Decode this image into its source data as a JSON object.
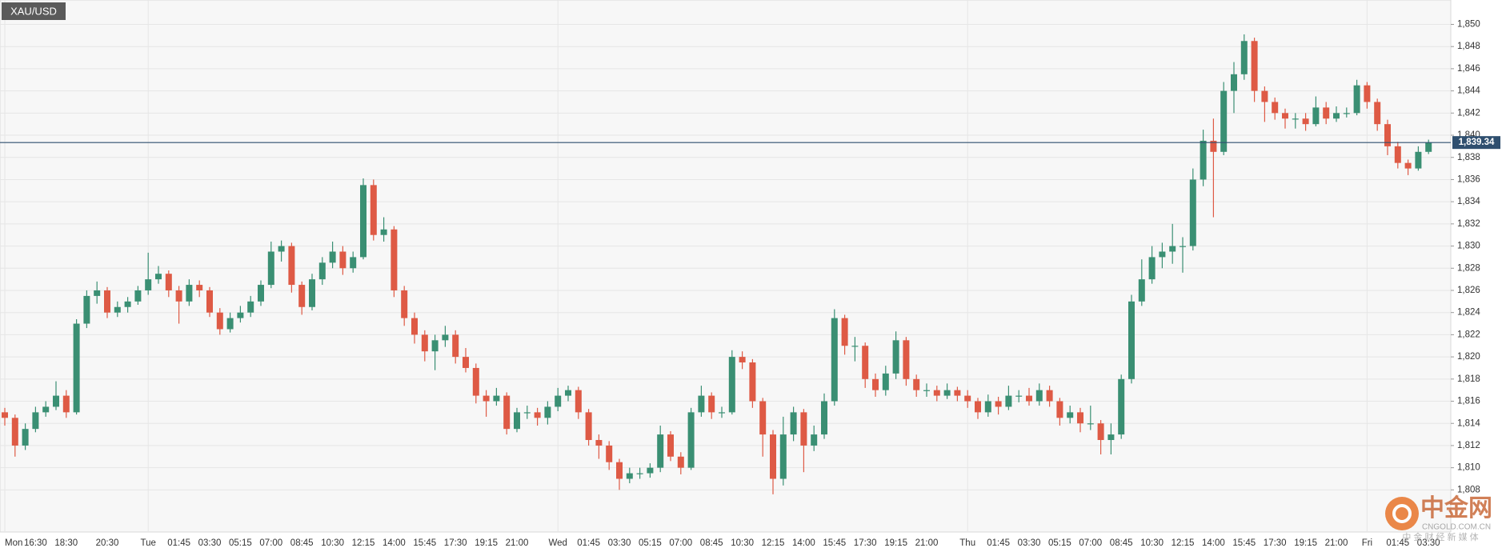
{
  "chart_data": {
    "type": "candlestick",
    "title": "XAU/USD",
    "up_color": "#3a8f73",
    "down_color": "#de5a45",
    "ylim": [
      1804.2,
      1852.2
    ],
    "yticks": [
      {
        "value": 1808,
        "label": "1,808"
      },
      {
        "value": 1810,
        "label": "1,810"
      },
      {
        "value": 1812,
        "label": "1,812"
      },
      {
        "value": 1814,
        "label": "1,814"
      },
      {
        "value": 1816,
        "label": "1,816"
      },
      {
        "value": 1818,
        "label": "1,818"
      },
      {
        "value": 1820,
        "label": "1,820"
      },
      {
        "value": 1822,
        "label": "1,822"
      },
      {
        "value": 1824,
        "label": "1,824"
      },
      {
        "value": 1826,
        "label": "1,826"
      },
      {
        "value": 1828,
        "label": "1,828"
      },
      {
        "value": 1830,
        "label": "1,830"
      },
      {
        "value": 1832,
        "label": "1,832"
      },
      {
        "value": 1834,
        "label": "1,834"
      },
      {
        "value": 1836,
        "label": "1,836"
      },
      {
        "value": 1838,
        "label": "1,838"
      },
      {
        "value": 1840,
        "label": "1,840"
      },
      {
        "value": 1842,
        "label": "1,842"
      },
      {
        "value": 1844,
        "label": "1,844"
      },
      {
        "value": 1846,
        "label": "1,846"
      },
      {
        "value": 1848,
        "label": "1,848"
      },
      {
        "value": 1850,
        "label": "1,850"
      }
    ],
    "grid": true,
    "last_price": {
      "value": 1839.34,
      "label": "1,839.34"
    },
    "watermark": {
      "name": "中金网",
      "domain": "CNGOLD.COM.CN",
      "slogan": "中 金 财 经 新 媒 体"
    },
    "categories": [
      "Mon",
      null,
      null,
      "16:30",
      null,
      null,
      "18:30",
      null,
      null,
      null,
      "20:30",
      null,
      null,
      null,
      "Tue",
      null,
      null,
      "01:45",
      null,
      null,
      "03:30",
      null,
      null,
      "05:15",
      null,
      null,
      "07:00",
      null,
      null,
      "08:45",
      null,
      null,
      "10:30",
      null,
      null,
      "12:15",
      null,
      null,
      "14:00",
      null,
      null,
      "15:45",
      null,
      null,
      "17:30",
      null,
      null,
      "19:15",
      null,
      null,
      "21:00",
      null,
      null,
      null,
      "Wed",
      null,
      null,
      "01:45",
      null,
      null,
      "03:30",
      null,
      null,
      "05:15",
      null,
      null,
      "07:00",
      null,
      null,
      "08:45",
      null,
      null,
      "10:30",
      null,
      null,
      "12:15",
      null,
      null,
      "14:00",
      null,
      null,
      "15:45",
      null,
      null,
      "17:30",
      null,
      null,
      "19:15",
      null,
      null,
      "21:00",
      null,
      null,
      null,
      "Thu",
      null,
      null,
      "01:45",
      null,
      null,
      "03:30",
      null,
      null,
      "05:15",
      null,
      null,
      "07:00",
      null,
      null,
      "08:45",
      null,
      null,
      "10:30",
      null,
      null,
      "12:15",
      null,
      null,
      "14:00",
      null,
      null,
      "15:45",
      null,
      null,
      "17:30",
      null,
      null,
      "19:15",
      null,
      null,
      "21:00",
      null,
      null,
      "Fri",
      null,
      null,
      "01:45",
      null,
      null,
      "03:30"
    ],
    "open": [
      1815,
      1814.5,
      1812,
      1813.5,
      1815,
      1815.5,
      1816.5,
      1815,
      1823,
      1825.5,
      1826,
      1824,
      1824.5,
      1825,
      1826,
      1827,
      1827.5,
      1826,
      1825,
      1826.5,
      1826,
      1824,
      1822.5,
      1823.5,
      1824,
      1825,
      1826.5,
      1829.5,
      1830,
      1826.5,
      1824.5,
      1827,
      1828.5,
      1829.5,
      1828,
      1829,
      1835.5,
      1831,
      1831.5,
      1826,
      1823.5,
      1822,
      1820.5,
      1821.5,
      1822,
      1820,
      1819,
      1816.5,
      1816,
      1816.5,
      1813.5,
      1815,
      1815,
      1814.5,
      1815.5,
      1816.5,
      1817,
      1815,
      1812.5,
      1812,
      1810.5,
      1809,
      1809.5,
      1809.5,
      1810,
      1813,
      1811,
      1810,
      1815,
      1816.5,
      1815,
      1815,
      1820,
      1819.5,
      1816,
      1813,
      1809,
      1813,
      1815,
      1812,
      1813,
      1816,
      1823.5,
      1821,
      1821,
      1818,
      1817,
      1818.5,
      1821.5,
      1818,
      1817,
      1817,
      1816.5,
      1817,
      1816.5,
      1816,
      1815,
      1816,
      1815.5,
      1816.5,
      1816.5,
      1816,
      1817,
      1816,
      1814.5,
      1815,
      1814,
      1814,
      1812.5,
      1813,
      1818,
      1825,
      1827,
      1829,
      1829.5,
      1830,
      1830,
      1836,
      1839.5,
      1838.5,
      1844,
      1845.5,
      1848.5,
      1844,
      1843,
      1842,
      1841.5,
      1841.5,
      1841,
      1842.5,
      1841.5,
      1842,
      1842,
      1844.5,
      1843,
      1841,
      1839,
      1837.5,
      1837,
      1838.5
    ],
    "high": [
      1815.4,
      1814.8,
      1814,
      1815.5,
      1816,
      1817.8,
      1817,
      1823.4,
      1826,
      1826.8,
      1826.3,
      1825,
      1825.4,
      1826.4,
      1829.4,
      1828.2,
      1827.8,
      1826.4,
      1827,
      1826.9,
      1826.3,
      1824.4,
      1824,
      1824.6,
      1825.5,
      1826.9,
      1830.4,
      1830.5,
      1830.3,
      1826.8,
      1827.5,
      1829,
      1830.4,
      1830,
      1829.5,
      1836.1,
      1836,
      1832.6,
      1831.8,
      1826.4,
      1824,
      1822.4,
      1822,
      1822.8,
      1822.4,
      1820.8,
      1819.4,
      1817,
      1817.2,
      1816.8,
      1815.4,
      1815.6,
      1815.4,
      1816,
      1817.2,
      1817.4,
      1817.3,
      1815.3,
      1813,
      1812.4,
      1810.8,
      1810,
      1810,
      1810.4,
      1813.8,
      1813.3,
      1811.4,
      1815.4,
      1817.4,
      1816.8,
      1815.5,
      1820.6,
      1820.5,
      1819.8,
      1816.3,
      1813.4,
      1814.6,
      1815.5,
      1815.3,
      1813.8,
      1816.7,
      1824.3,
      1823.8,
      1821.8,
      1821.3,
      1818.5,
      1819.2,
      1822.3,
      1821.8,
      1818.4,
      1817.6,
      1817.4,
      1817.6,
      1817.3,
      1817,
      1816.3,
      1816.6,
      1816.4,
      1817.4,
      1817,
      1817.2,
      1817.6,
      1817.4,
      1816.3,
      1815.6,
      1815.4,
      1815.6,
      1814.3,
      1814,
      1818.4,
      1825.6,
      1828.8,
      1830,
      1830.3,
      1832,
      1830.8,
      1837,
      1840.5,
      1841.5,
      1844.8,
      1846.6,
      1849.1,
      1848.8,
      1844.4,
      1843.4,
      1842.4,
      1842,
      1842,
      1843.5,
      1843,
      1842.6,
      1842.5,
      1845,
      1844.8,
      1843.3,
      1841.4,
      1839.4,
      1837.8,
      1839,
      1839.6
    ],
    "low": [
      1813.8,
      1811,
      1811.6,
      1813.2,
      1814.6,
      1815.2,
      1814.5,
      1814.8,
      1822.6,
      1824.8,
      1823.5,
      1823.6,
      1824,
      1824.7,
      1825.6,
      1826.6,
      1825.4,
      1823,
      1824.6,
      1825.4,
      1823.6,
      1822,
      1822.2,
      1823.1,
      1823.6,
      1824.6,
      1826.2,
      1828.6,
      1825.8,
      1823.8,
      1824.2,
      1826.5,
      1828,
      1827.4,
      1827.6,
      1828.8,
      1830.5,
      1830.4,
      1825.4,
      1822.8,
      1821.2,
      1819.6,
      1818.8,
      1820.9,
      1819.4,
      1818.6,
      1815.8,
      1814.6,
      1815.6,
      1813,
      1813.2,
      1814.4,
      1813.8,
      1813.9,
      1815.1,
      1816,
      1814.4,
      1812,
      1810.8,
      1809.8,
      1808,
      1808.6,
      1809,
      1809.1,
      1809.6,
      1810.6,
      1809.4,
      1809.8,
      1814.6,
      1814.4,
      1814.5,
      1814.8,
      1818.9,
      1815.4,
      1811,
      1807.6,
      1808.4,
      1812.4,
      1809.6,
      1811.5,
      1812.6,
      1815.6,
      1820.2,
      1819.6,
      1817.2,
      1816.4,
      1816.5,
      1818,
      1817.4,
      1816.4,
      1816.4,
      1816,
      1816.2,
      1816,
      1815.4,
      1814.4,
      1814.6,
      1814.8,
      1815.2,
      1815.9,
      1815.6,
      1815.6,
      1815.5,
      1813.8,
      1814,
      1813.2,
      1813.4,
      1811.2,
      1811.2,
      1812.6,
      1817.6,
      1824.6,
      1826.6,
      1828,
      1828.4,
      1827.6,
      1829.6,
      1835.4,
      1832.6,
      1838.2,
      1842,
      1845,
      1843,
      1841.2,
      1841.4,
      1840.6,
      1840.6,
      1840.4,
      1840.8,
      1841,
      1841.2,
      1841.6,
      1841.8,
      1842.4,
      1840.4,
      1838.2,
      1837,
      1836.4,
      1836.8,
      1838.3
    ],
    "close": [
      1814.5,
      1812,
      1813.5,
      1815,
      1815.5,
      1816.5,
      1815,
      1823,
      1825.5,
      1826,
      1824,
      1824.5,
      1825,
      1826,
      1827,
      1827.5,
      1826,
      1825,
      1826.5,
      1826,
      1824,
      1822.5,
      1823.5,
      1824,
      1825,
      1826.5,
      1829.5,
      1830,
      1826.5,
      1824.5,
      1827,
      1828.5,
      1829.5,
      1828,
      1829,
      1835.5,
      1831,
      1831.5,
      1826,
      1823.5,
      1822,
      1820.5,
      1821.5,
      1822,
      1820,
      1819,
      1816.5,
      1816,
      1816.5,
      1813.5,
      1815,
      1815,
      1814.5,
      1815.5,
      1816.5,
      1817,
      1815,
      1812.5,
      1812,
      1810.5,
      1809,
      1809.5,
      1809.5,
      1810,
      1813,
      1811,
      1810,
      1815,
      1816.5,
      1815,
      1815,
      1820,
      1819.5,
      1816,
      1813,
      1809,
      1813,
      1815,
      1812,
      1813,
      1816,
      1823.5,
      1821,
      1821,
      1818,
      1817,
      1818.5,
      1821.5,
      1818,
      1817,
      1817,
      1816.5,
      1817,
      1816.5,
      1816,
      1815,
      1816,
      1815.5,
      1816.5,
      1816.5,
      1816,
      1817,
      1816,
      1814.5,
      1815,
      1814,
      1814,
      1812.5,
      1813,
      1818,
      1825,
      1827,
      1829,
      1829.5,
      1830,
      1830,
      1836,
      1839.5,
      1838.5,
      1844,
      1845.5,
      1848.5,
      1844,
      1843,
      1842,
      1841.5,
      1841.5,
      1841,
      1842.5,
      1841.5,
      1842,
      1842,
      1844.5,
      1843,
      1841,
      1839,
      1837.5,
      1837,
      1838.5,
      1839.34
    ]
  }
}
